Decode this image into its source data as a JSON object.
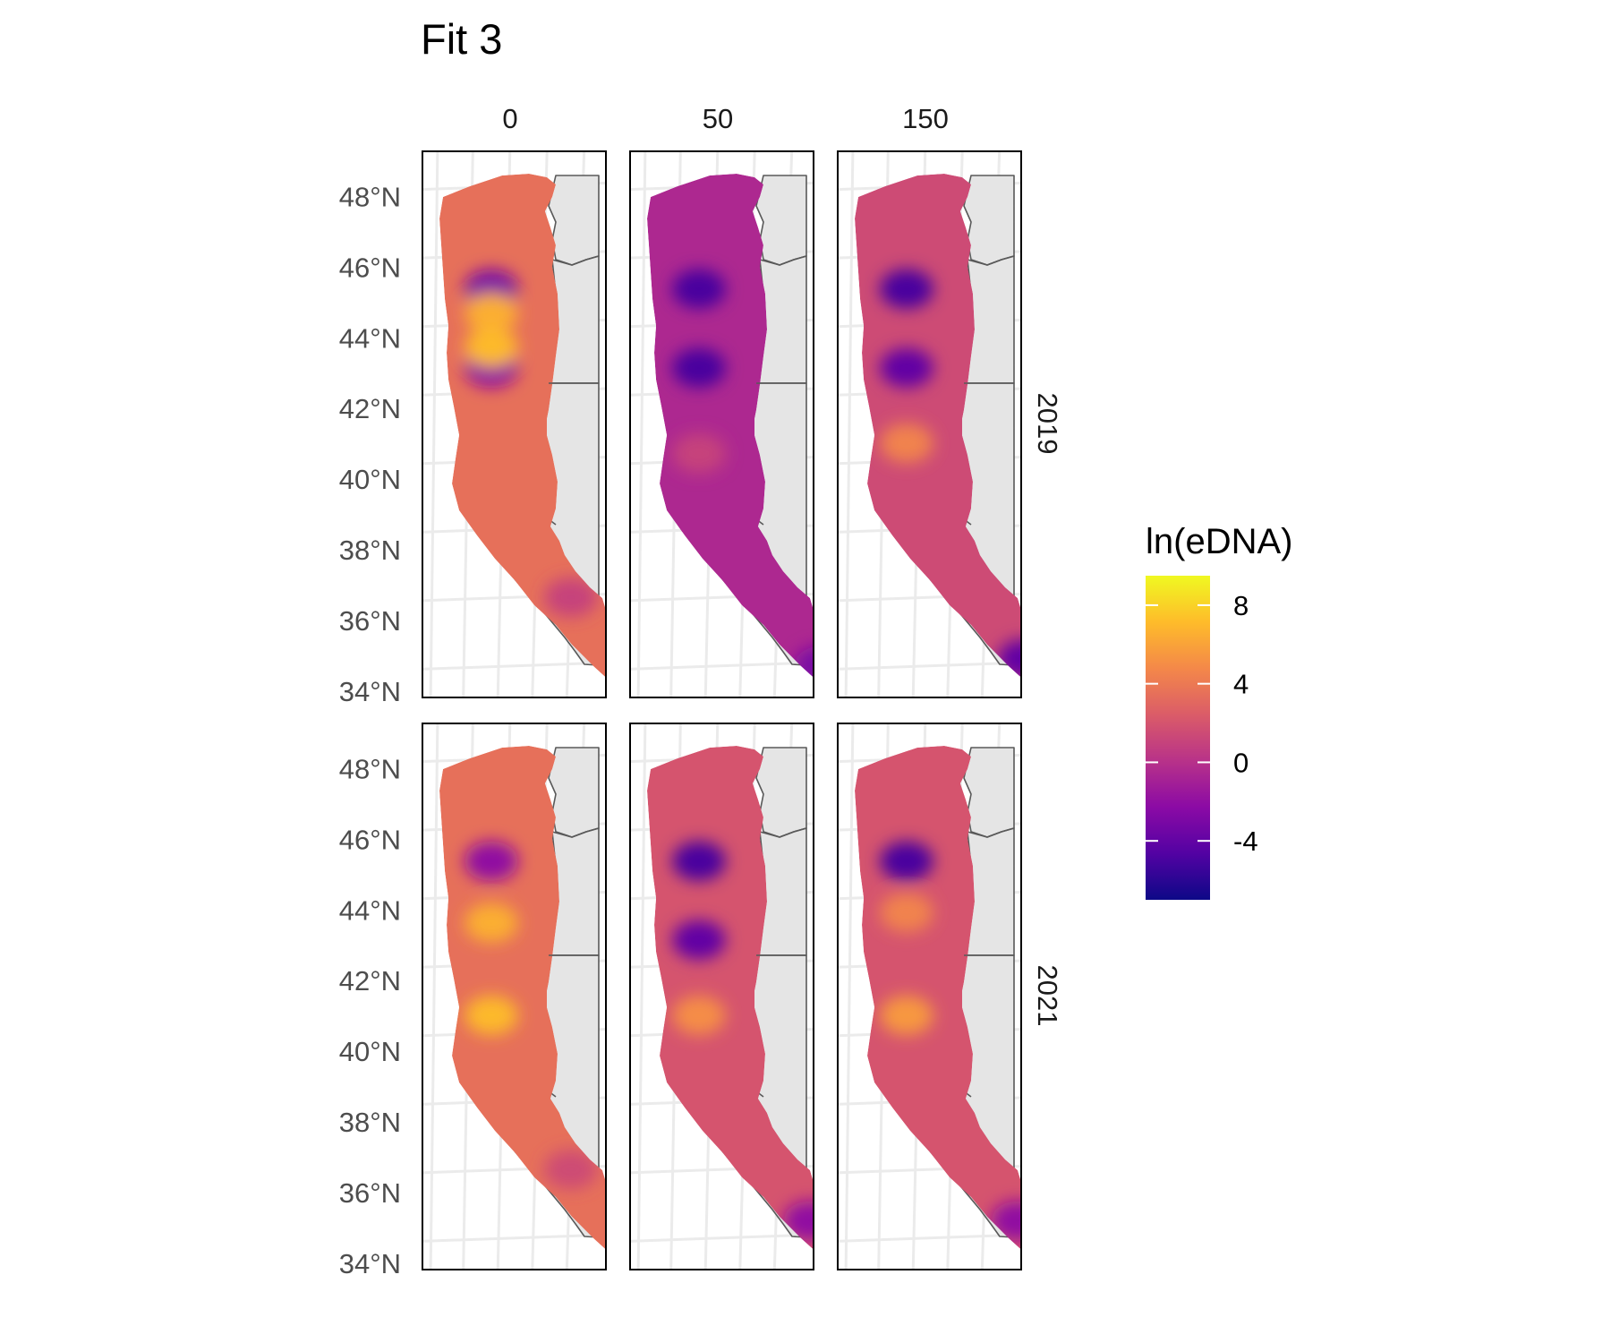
{
  "title": "Fit 3",
  "columns": [
    {
      "label": "0",
      "value": 0
    },
    {
      "label": "50",
      "value": 50
    },
    {
      "label": "150",
      "value": 150
    }
  ],
  "rows": [
    {
      "label": "2019",
      "value": 2019
    },
    {
      "label": "2021",
      "value": 2021
    }
  ],
  "axis": {
    "y_ticks": [
      {
        "label": "48°N",
        "lat": 48
      },
      {
        "label": "46°N",
        "lat": 46
      },
      {
        "label": "44°N",
        "lat": 44
      },
      {
        "label": "42°N",
        "lat": 42
      },
      {
        "label": "40°N",
        "lat": 40
      },
      {
        "label": "38°N",
        "lat": 38
      },
      {
        "label": "36°N",
        "lat": 36
      },
      {
        "label": "34°N",
        "lat": 34
      }
    ]
  },
  "legend": {
    "title": "ln(eDNA)",
    "ticks": [
      {
        "label": "8",
        "value": 8
      },
      {
        "label": "4",
        "value": 4
      },
      {
        "label": "0",
        "value": 0
      },
      {
        "label": "-4",
        "value": -4
      }
    ],
    "range": [
      -7,
      9.5
    ],
    "colors": [
      "#0d0887",
      "#5302a3",
      "#8b0aa5",
      "#b83289",
      "#db5c68",
      "#f48849",
      "#febc2a",
      "#f0f921"
    ]
  },
  "panels": [
    {
      "row": "2019",
      "column": "0",
      "base": 3.5,
      "hotspots": [
        {
          "lat": 46,
          "v": -3
        },
        {
          "lat": 43.7,
          "v": -2
        },
        {
          "lat": 45.3,
          "v": 6.5
        },
        {
          "lat": 44.3,
          "v": 7
        },
        {
          "lat": 37,
          "v": 1
        }
      ]
    },
    {
      "row": "2019",
      "column": "50",
      "base": -0.5,
      "hotspots": [
        {
          "lat": 46,
          "v": -5
        },
        {
          "lat": 43.7,
          "v": -5
        },
        {
          "lat": 41.2,
          "v": 1
        },
        {
          "lat": 35,
          "v": -3
        }
      ]
    },
    {
      "row": "2019",
      "column": "150",
      "base": 1.5,
      "hotspots": [
        {
          "lat": 46,
          "v": -5
        },
        {
          "lat": 43.7,
          "v": -4
        },
        {
          "lat": 41.5,
          "v": 4.5
        },
        {
          "lat": 35.2,
          "v": -4
        }
      ]
    },
    {
      "row": "2021",
      "column": "0",
      "base": 3.5,
      "hotspots": [
        {
          "lat": 46,
          "v": -2
        },
        {
          "lat": 44.2,
          "v": 6.5
        },
        {
          "lat": 41.5,
          "v": 7
        },
        {
          "lat": 37,
          "v": 1.5
        }
      ]
    },
    {
      "row": "2021",
      "column": "50",
      "base": 2,
      "hotspots": [
        {
          "lat": 46,
          "v": -5
        },
        {
          "lat": 43.7,
          "v": -4
        },
        {
          "lat": 41.5,
          "v": 5
        },
        {
          "lat": 35.5,
          "v": -2
        }
      ]
    },
    {
      "row": "2021",
      "column": "150",
      "base": 2,
      "hotspots": [
        {
          "lat": 46,
          "v": -5
        },
        {
          "lat": 44.5,
          "v": 4.5
        },
        {
          "lat": 41.5,
          "v": 5.5
        },
        {
          "lat": 35.5,
          "v": -2
        }
      ]
    }
  ]
}
